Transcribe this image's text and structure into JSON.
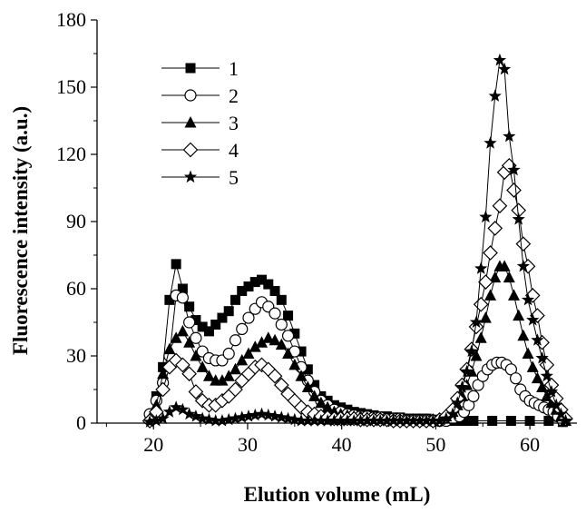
{
  "chart_data": {
    "type": "line",
    "title": "",
    "xlabel": "Elution volume (mL)",
    "ylabel": "Fluorescence intensity (a.u.)",
    "xlim": [
      14,
      65
    ],
    "ylim": [
      0,
      180
    ],
    "xticks": [
      20,
      30,
      40,
      50,
      60
    ],
    "yticks": [
      0,
      30,
      60,
      90,
      120,
      150,
      180
    ],
    "grid": false,
    "legend_position": "top-left",
    "series": [
      {
        "name": "1",
        "marker": "square-filled",
        "x": [
          19.6,
          20.3,
          21.0,
          21.7,
          22.4,
          23.1,
          23.8,
          24.5,
          25.2,
          25.9,
          26.6,
          27.3,
          28.0,
          28.7,
          29.4,
          30.1,
          30.8,
          31.5,
          32.2,
          32.9,
          33.6,
          34.3,
          35.0,
          35.7,
          36.4,
          37.1,
          37.8,
          38.5,
          39.2,
          39.9,
          40.6,
          41.3,
          42.0,
          42.7,
          43.4,
          44.1,
          44.8,
          45.5,
          46.2,
          46.9,
          47.6,
          48.3,
          49.0,
          49.7,
          50.4,
          51.1,
          51.8,
          52.5,
          53.2,
          54.0,
          56.0,
          58.0,
          60.0,
          62.0,
          63.5
        ],
        "y": [
          3,
          12,
          25,
          55,
          71,
          60,
          52,
          46,
          43,
          41,
          44,
          47,
          50,
          55,
          59,
          61,
          63,
          64,
          62,
          59,
          55,
          48,
          40,
          32,
          24,
          17,
          12,
          10,
          8,
          7,
          6,
          5,
          4.5,
          4,
          3.5,
          3,
          3,
          2.5,
          2.5,
          2,
          2,
          2,
          2,
          1.5,
          1.5,
          1.5,
          1,
          1,
          1,
          1,
          1,
          1,
          1,
          1,
          0.5
        ]
      },
      {
        "name": "2",
        "marker": "circle-open",
        "x": [
          19.6,
          20.3,
          21.0,
          21.7,
          22.4,
          23.1,
          23.8,
          24.5,
          25.2,
          25.9,
          26.6,
          27.3,
          28.0,
          28.7,
          29.4,
          30.1,
          30.8,
          31.5,
          32.2,
          32.9,
          33.6,
          34.3,
          35.0,
          35.7,
          36.4,
          37.1,
          37.8,
          38.5,
          39.2,
          39.9,
          40.6,
          41.3,
          42.0,
          42.7,
          43.4,
          44.1,
          44.8,
          45.5,
          46.2,
          46.9,
          47.6,
          48.3,
          49.0,
          49.7,
          50.4,
          51.1,
          51.8,
          52.5,
          53.0,
          53.5,
          54.0,
          54.5,
          55.0,
          55.5,
          56.0,
          56.5,
          57.0,
          57.5,
          58.0,
          58.5,
          59.0,
          59.5,
          60.0,
          60.5,
          61.0,
          61.5,
          62.0,
          62.5,
          63.0,
          63.5
        ],
        "y": [
          4,
          10,
          18,
          30,
          57,
          56,
          45,
          38,
          32,
          29,
          28,
          28,
          31,
          37,
          42,
          47,
          51,
          54,
          52,
          49,
          44,
          39,
          32,
          25,
          19,
          14,
          10,
          8,
          6,
          5,
          4,
          3.5,
          3,
          3,
          2.5,
          2.5,
          2,
          2,
          2,
          1.5,
          1.5,
          1.5,
          1.5,
          1,
          1,
          1,
          2,
          3,
          5,
          8,
          12,
          17,
          21,
          24,
          26,
          27,
          27,
          26,
          24,
          20,
          15,
          12,
          10,
          9,
          8,
          7,
          6,
          5,
          3,
          1
        ]
      },
      {
        "name": "3",
        "marker": "triangle-filled",
        "x": [
          19.6,
          20.3,
          21.0,
          21.7,
          22.4,
          23.1,
          23.8,
          24.5,
          25.2,
          25.9,
          26.6,
          27.3,
          28.0,
          28.7,
          29.4,
          30.1,
          30.8,
          31.5,
          32.2,
          32.9,
          33.6,
          34.3,
          35.0,
          35.7,
          36.4,
          37.1,
          37.8,
          38.5,
          39.2,
          39.9,
          40.6,
          41.3,
          42.0,
          42.7,
          43.4,
          44.1,
          44.8,
          45.5,
          46.2,
          46.9,
          47.6,
          48.3,
          49.0,
          49.7,
          50.4,
          51.1,
          51.8,
          52.3,
          52.8,
          53.3,
          53.8,
          54.3,
          54.8,
          55.3,
          55.8,
          56.3,
          56.8,
          57.3,
          57.8,
          58.3,
          58.8,
          59.3,
          59.8,
          60.3,
          60.8,
          61.3,
          61.8,
          62.3,
          62.8,
          63.3,
          63.8
        ],
        "y": [
          2,
          8,
          22,
          33,
          38,
          41,
          36,
          30,
          25,
          21,
          19,
          19,
          21,
          24,
          28,
          31,
          34,
          36,
          38,
          37,
          35,
          31,
          26,
          21,
          16,
          12,
          9,
          7,
          5,
          4,
          3.5,
          3,
          3,
          2.5,
          2.5,
          2,
          2,
          2,
          1.5,
          1.5,
          1.5,
          1.5,
          1,
          1,
          1.5,
          3,
          5,
          8,
          12,
          17,
          23,
          30,
          38,
          47,
          57,
          65,
          70,
          70,
          65,
          57,
          48,
          39,
          31,
          25,
          20,
          16,
          12,
          9,
          6,
          3,
          1
        ]
      },
      {
        "name": "4",
        "marker": "diamond-open",
        "x": [
          19.6,
          20.3,
          21.0,
          21.7,
          22.4,
          23.1,
          23.8,
          24.5,
          25.2,
          25.9,
          26.6,
          27.3,
          28.0,
          28.7,
          29.4,
          30.1,
          30.8,
          31.5,
          32.2,
          32.9,
          33.6,
          34.3,
          35.0,
          35.7,
          36.4,
          37.1,
          37.8,
          38.5,
          39.2,
          39.9,
          40.6,
          41.3,
          42.0,
          42.7,
          43.4,
          44.1,
          44.8,
          45.5,
          46.2,
          46.9,
          47.6,
          48.3,
          49.0,
          49.7,
          50.4,
          51.1,
          51.8,
          52.3,
          52.8,
          53.3,
          53.8,
          54.3,
          54.8,
          55.3,
          55.8,
          56.3,
          56.8,
          57.3,
          57.8,
          58.3,
          58.8,
          59.3,
          59.8,
          60.3,
          60.8,
          61.3,
          61.8,
          62.3,
          62.8,
          63.3,
          63.8
        ],
        "y": [
          1,
          5,
          15,
          25,
          28,
          26,
          22,
          14,
          10,
          8,
          8,
          10,
          12,
          15,
          19,
          22,
          25,
          26,
          24,
          21,
          17,
          13,
          10,
          7,
          5,
          4,
          3,
          2.5,
          2,
          2,
          2,
          2,
          1.5,
          1.5,
          1.5,
          1.5,
          1.5,
          1,
          1,
          1,
          1,
          1,
          1,
          1,
          1.5,
          3,
          6,
          11,
          17,
          24,
          33,
          43,
          53,
          63,
          76,
          87,
          97,
          112,
          115,
          104,
          95,
          80,
          70,
          57,
          48,
          36,
          26,
          17,
          11,
          6,
          2
        ]
      },
      {
        "name": "5",
        "marker": "star-filled",
        "x": [
          19.6,
          20.3,
          21.0,
          21.7,
          22.4,
          23.1,
          23.8,
          24.5,
          25.2,
          25.9,
          26.6,
          27.3,
          28.0,
          28.7,
          29.4,
          30.1,
          30.8,
          31.5,
          32.2,
          32.9,
          33.6,
          34.3,
          35.0,
          35.7,
          36.4,
          37.1,
          37.8,
          38.5,
          39.2,
          39.9,
          40.6,
          41.3,
          42.0,
          42.7,
          43.4,
          44.1,
          44.8,
          45.5,
          46.2,
          46.9,
          47.6,
          48.3,
          49.0,
          49.7,
          50.4,
          51.1,
          51.8,
          52.3,
          52.8,
          53.3,
          53.8,
          54.3,
          54.8,
          55.3,
          55.8,
          56.3,
          56.8,
          57.3,
          57.8,
          58.3,
          58.8,
          59.3,
          59.8,
          60.3,
          60.8,
          61.3,
          61.8,
          62.3,
          62.8,
          63.3,
          63.8
        ],
        "y": [
          0.5,
          1,
          2,
          5,
          7,
          6,
          4,
          3,
          2,
          1.5,
          1,
          1,
          1.5,
          2,
          2.5,
          3,
          3.5,
          4,
          3.5,
          3,
          2.5,
          2,
          1.5,
          1,
          1,
          1,
          1,
          1,
          1,
          1,
          1,
          1,
          1,
          1,
          1,
          1,
          1,
          1,
          1,
          1,
          1,
          1,
          1,
          1,
          1,
          2,
          4,
          9,
          16,
          23,
          32,
          45,
          69,
          92,
          125,
          146,
          162,
          158,
          128,
          113,
          91,
          70,
          55,
          46,
          37,
          29,
          21,
          14,
          8,
          4,
          1
        ]
      }
    ],
    "legend": [
      "1",
      "2",
      "3",
      "4",
      "5"
    ]
  }
}
